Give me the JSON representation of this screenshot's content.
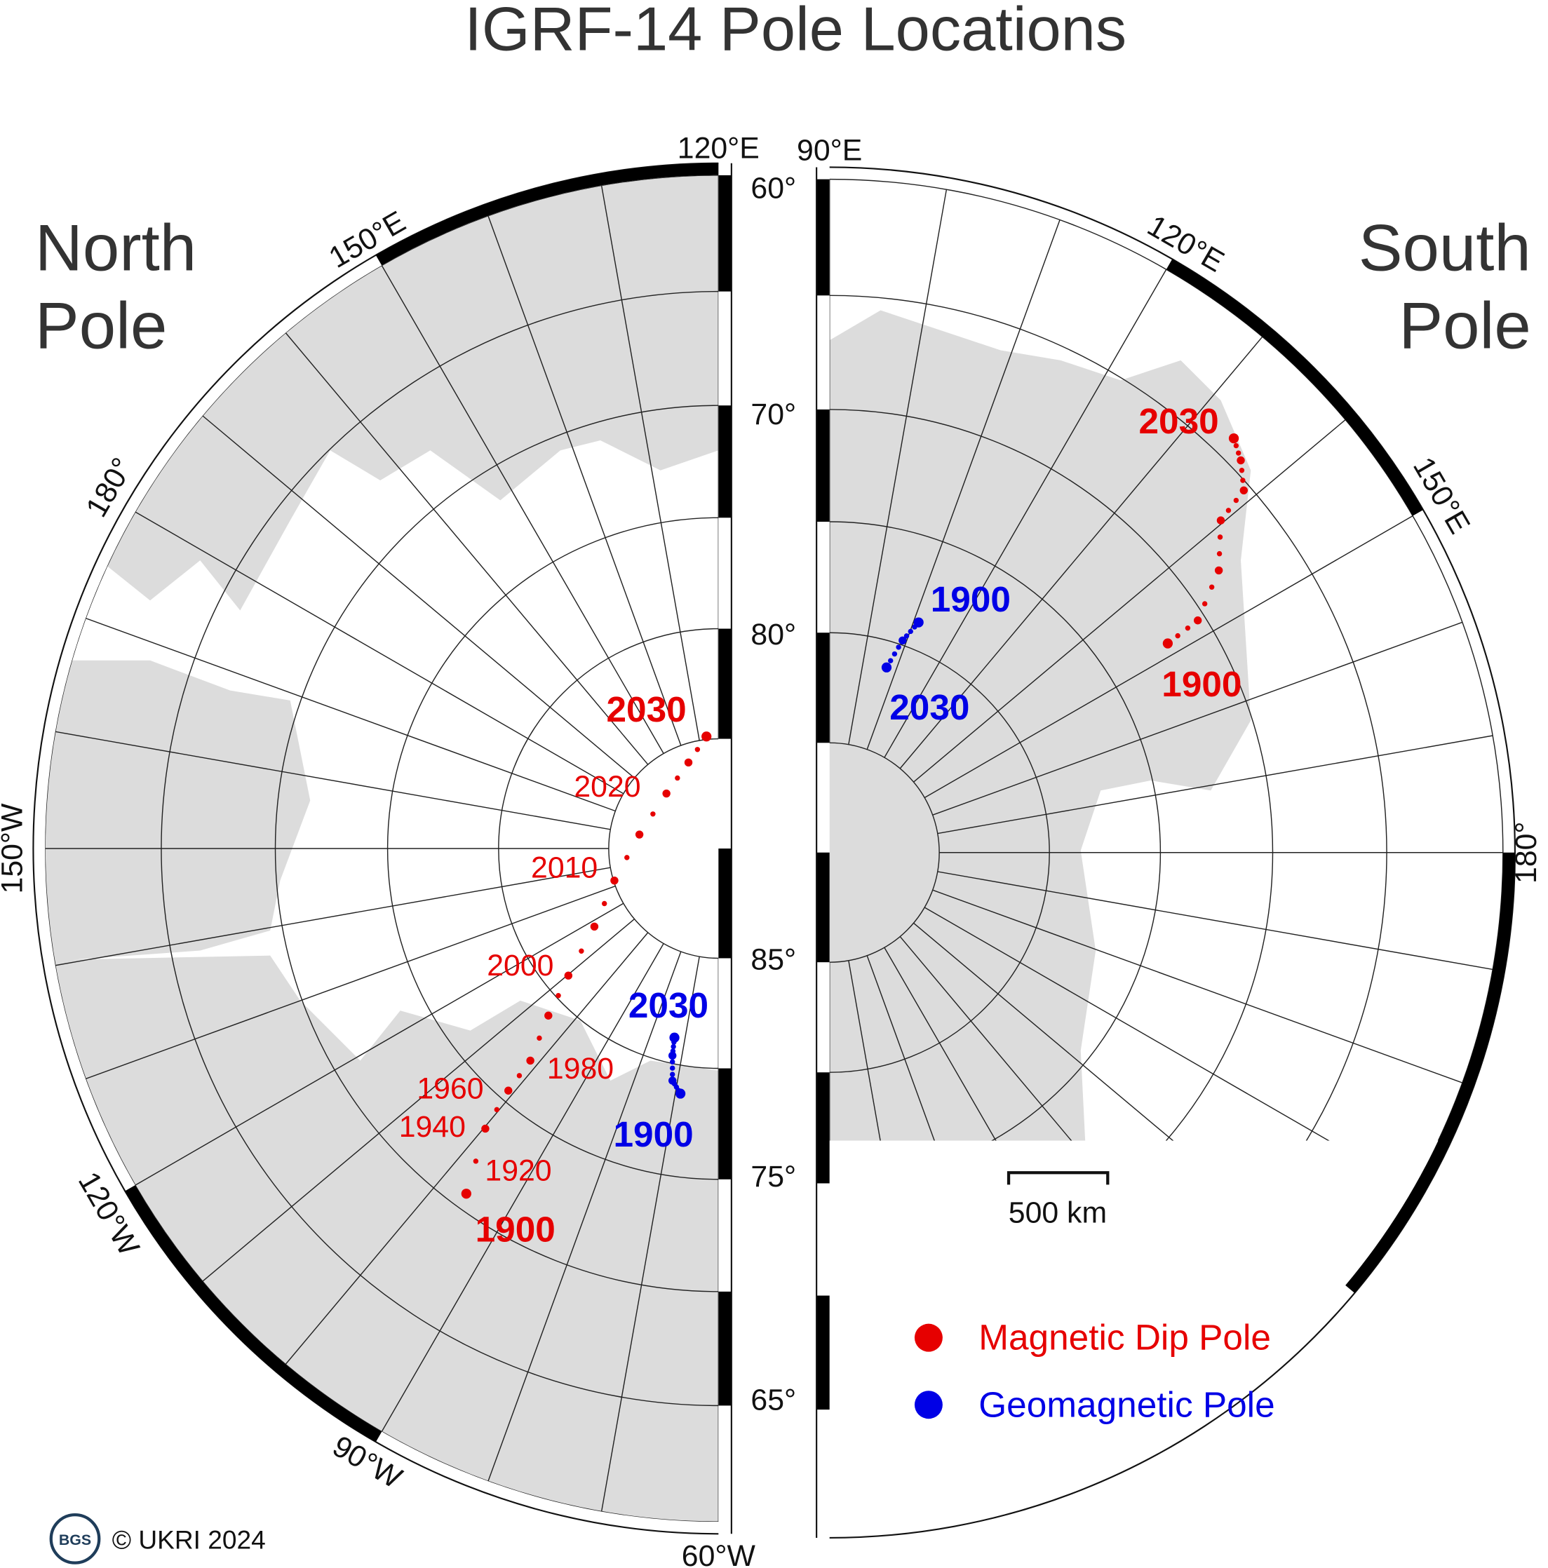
{
  "title": "IGRF-14 Pole Locations",
  "north": {
    "label_line1": "North",
    "label_line2": "Pole",
    "longitude_labels": [
      "120°E",
      "150°E",
      "180°",
      "150°W",
      "120°W",
      "90°W",
      "60°W"
    ],
    "dip_pole_years": [
      "2030",
      "2020",
      "2010",
      "2000",
      "1980",
      "1960",
      "1940",
      "1920",
      "1900"
    ],
    "geomagnetic_years": [
      "2030",
      "1900"
    ]
  },
  "south": {
    "label_line1": "South",
    "label_line2": "Pole",
    "longitude_labels": [
      "90°E",
      "120°E",
      "150°E",
      "180°"
    ],
    "dip_pole_years": [
      "2030",
      "1900"
    ],
    "geomagnetic_years": [
      "1900",
      "2030"
    ]
  },
  "latitude_labels": [
    "60°",
    "70°",
    "80°",
    "85°",
    "75°",
    "65°"
  ],
  "scale_bar": "500 km",
  "legend": [
    "Magnetic Dip Pole",
    "Geomagnetic Pole"
  ],
  "logo": "BGS",
  "copyright": "© UKRI 2024"
}
